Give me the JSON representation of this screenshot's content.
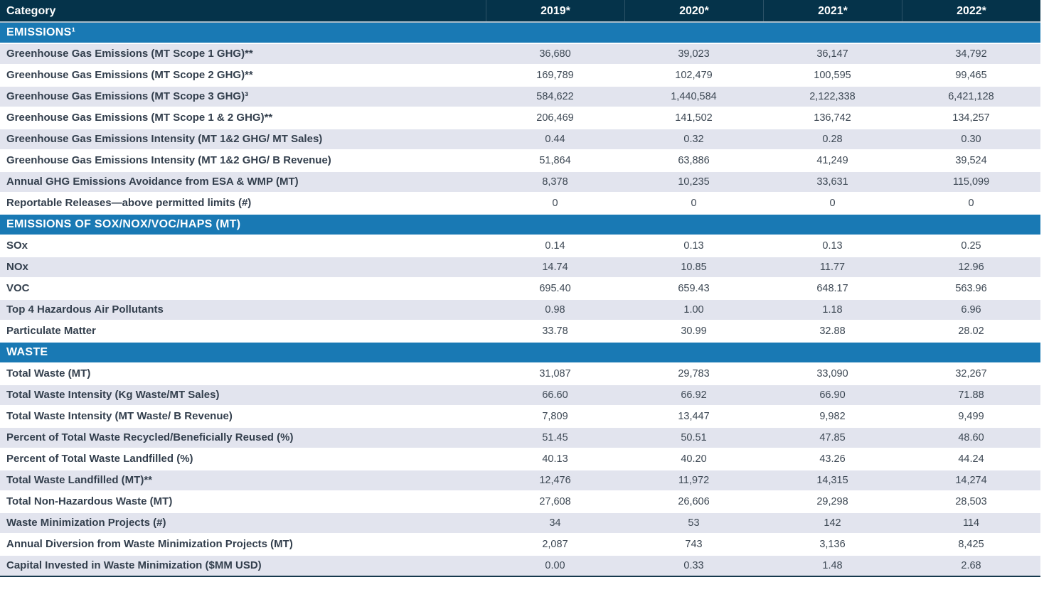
{
  "chart_data": {
    "type": "table",
    "columns": [
      "Category",
      "2019*",
      "2020*",
      "2021*",
      "2022*"
    ],
    "sections": [
      {
        "title": "EMISSIONS¹",
        "rows": [
          {
            "label": "Greenhouse Gas Emissions (MT Scope 1 GHG)**",
            "values": [
              "36,680",
              "39,023",
              "36,147",
              "34,792"
            ],
            "shaded": true
          },
          {
            "label": "Greenhouse Gas Emissions (MT Scope 2 GHG)**",
            "values": [
              "169,789",
              "102,479",
              "100,595",
              "99,465"
            ],
            "shaded": false
          },
          {
            "label": "Greenhouse Gas Emissions (MT Scope 3 GHG)³",
            "values": [
              "584,622",
              "1,440,584",
              "2,122,338",
              "6,421,128"
            ],
            "shaded": true
          },
          {
            "label": "Greenhouse Gas Emissions (MT Scope 1 & 2 GHG)**",
            "values": [
              "206,469",
              "141,502",
              "136,742",
              "134,257"
            ],
            "shaded": false
          },
          {
            "label": "Greenhouse Gas Emissions Intensity (MT 1&2 GHG/ MT Sales)",
            "values": [
              "0.44",
              "0.32",
              "0.28",
              "0.30"
            ],
            "shaded": true
          },
          {
            "label": "Greenhouse Gas Emissions Intensity (MT 1&2 GHG/ B Revenue)",
            "values": [
              "51,864",
              "63,886",
              "41,249",
              "39,524"
            ],
            "shaded": false
          },
          {
            "label": "Annual GHG Emissions Avoidance from ESA & WMP (MT)",
            "values": [
              "8,378",
              "10,235",
              "33,631",
              "115,099"
            ],
            "shaded": true
          },
          {
            "label": "Reportable Releases—above permitted limits (#)",
            "values": [
              "0",
              "0",
              "0",
              "0"
            ],
            "shaded": false
          }
        ]
      },
      {
        "title": "EMISSIONS OF SOX/NOX/VOC/HAPS (MT)",
        "rows": [
          {
            "label": "SOx",
            "values": [
              "0.14",
              "0.13",
              "0.13",
              "0.25"
            ],
            "shaded": false
          },
          {
            "label": "NOx",
            "values": [
              "14.74",
              "10.85",
              "11.77",
              "12.96"
            ],
            "shaded": true
          },
          {
            "label": "VOC",
            "values": [
              "695.40",
              "659.43",
              "648.17",
              "563.96"
            ],
            "shaded": false
          },
          {
            "label": "Top 4 Hazardous Air Pollutants",
            "values": [
              "0.98",
              "1.00",
              "1.18",
              "6.96"
            ],
            "shaded": true
          },
          {
            "label": "Particulate Matter",
            "values": [
              "33.78",
              "30.99",
              "32.88",
              "28.02"
            ],
            "shaded": false
          }
        ]
      },
      {
        "title": "WASTE",
        "rows": [
          {
            "label": "Total Waste (MT)",
            "values": [
              "31,087",
              "29,783",
              "33,090",
              "32,267"
            ],
            "shaded": false
          },
          {
            "label": "Total Waste Intensity (Kg Waste/MT Sales)",
            "values": [
              "66.60",
              "66.92",
              "66.90",
              "71.88"
            ],
            "shaded": true
          },
          {
            "label": "Total Waste Intensity (MT Waste/ B Revenue)",
            "values": [
              "7,809",
              "13,447",
              "9,982",
              "9,499"
            ],
            "shaded": false
          },
          {
            "label": "Percent of Total Waste Recycled/Beneficially Reused (%)",
            "values": [
              "51.45",
              "50.51",
              "47.85",
              "48.60"
            ],
            "shaded": true
          },
          {
            "label": "Percent of Total Waste Landfilled (%)",
            "values": [
              "40.13",
              "40.20",
              "43.26",
              "44.24"
            ],
            "shaded": false
          },
          {
            "label": "Total Waste Landfilled (MT)**",
            "values": [
              "12,476",
              "11,972",
              "14,315",
              "14,274"
            ],
            "shaded": true
          },
          {
            "label": "Total Non-Hazardous Waste (MT)",
            "values": [
              "27,608",
              "26,606",
              "29,298",
              "28,503"
            ],
            "shaded": false
          },
          {
            "label": "Waste Minimization Projects (#)",
            "values": [
              "34",
              "53",
              "142",
              "114"
            ],
            "shaded": true
          },
          {
            "label": "Annual Diversion from Waste Minimization Projects (MT)",
            "values": [
              "2,087",
              "743",
              "3,136",
              "8,425"
            ],
            "shaded": false
          },
          {
            "label": "Capital Invested in Waste Minimization ($MM USD)",
            "values": [
              "0.00",
              "0.33",
              "1.48",
              "2.68"
            ],
            "shaded": true
          }
        ]
      }
    ]
  },
  "colors": {
    "header_bg": "#05334a",
    "section_band_bg": "#1979b4",
    "shaded_row_bg": "#e2e4ee",
    "header_divider": "#a8bcca",
    "bottom_border": "#16384d",
    "label_text": "#333f4d",
    "value_text": "#3d4854",
    "header_text": "#ffffff"
  }
}
